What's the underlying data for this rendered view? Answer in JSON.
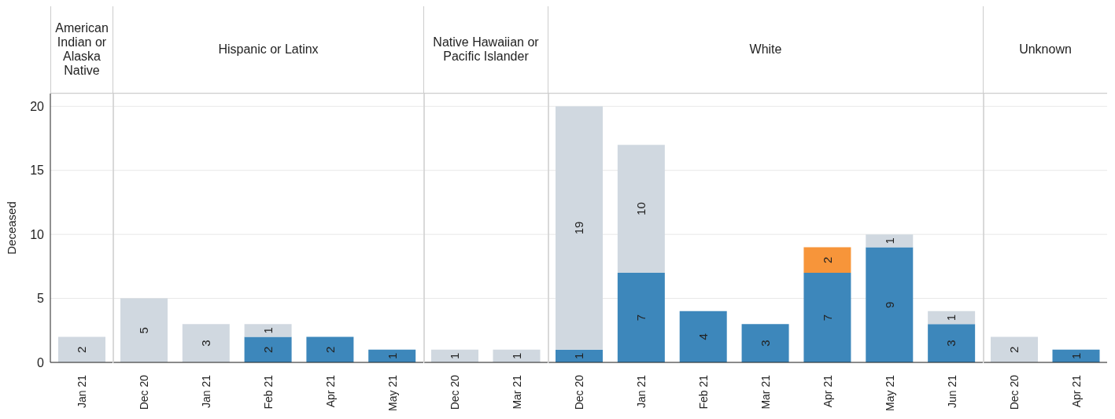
{
  "chart_data": [
    {
      "type": "bar",
      "title": "American Indian or Alaska Native",
      "ylabel": "Deceased",
      "categories": [
        "Jan 21"
      ],
      "stacked": true,
      "data_labels": true,
      "grid": "y",
      "ylim": [
        0,
        21
      ],
      "yticks": [
        0,
        5,
        10,
        15,
        20
      ],
      "series": [
        {
          "color": "#3d87bb",
          "values": [
            null
          ]
        },
        {
          "color": "#f7953a",
          "values": [
            null
          ]
        },
        {
          "color": "#d0d8e0",
          "values": [
            2
          ]
        }
      ]
    },
    {
      "type": "bar",
      "title": "Hispanic or Latinx",
      "categories": [
        "Dec 20",
        "Jan 21",
        "Feb 21",
        "Apr 21",
        "May 21"
      ],
      "stacked": true,
      "data_labels": true,
      "grid": "y",
      "ylim": [
        0,
        21
      ],
      "yticks": [
        0,
        5,
        10,
        15,
        20
      ],
      "tick_labels": "x",
      "series": [
        {
          "color": "#3d87bb",
          "values": [
            null,
            null,
            2,
            2,
            1
          ]
        },
        {
          "color": "#f7953a",
          "values": [
            null,
            null,
            null,
            null,
            null
          ]
        },
        {
          "color": "#d0d8e0",
          "values": [
            5,
            3,
            1,
            null,
            null
          ]
        }
      ]
    },
    {
      "type": "bar",
      "title": "Native Hawaiian or Pacific Islander",
      "categories": [
        "Dec 20",
        "Mar 21"
      ],
      "stacked": true,
      "data_labels": true,
      "grid": "y",
      "ylim": [
        0,
        21
      ],
      "yticks": [
        0,
        5,
        10,
        15,
        20
      ],
      "tick_labels": "x",
      "series": [
        {
          "color": "#3d87bb",
          "values": [
            null,
            null
          ]
        },
        {
          "color": "#f7953a",
          "values": [
            null,
            null
          ]
        },
        {
          "color": "#d0d8e0",
          "values": [
            1,
            1
          ]
        }
      ]
    },
    {
      "type": "bar",
      "title": "White",
      "categories": [
        "Dec 20",
        "Jan 21",
        "Feb 21",
        "Mar 21",
        "Apr 21",
        "May 21",
        "Jun 21"
      ],
      "stacked": true,
      "data_labels": true,
      "grid": "y",
      "ylim": [
        0,
        21
      ],
      "yticks": [
        0,
        5,
        10,
        15,
        20
      ],
      "tick_labels": "x",
      "series": [
        {
          "color": "#3d87bb",
          "values": [
            1,
            7,
            4,
            3,
            7,
            9,
            3
          ]
        },
        {
          "color": "#f7953a",
          "values": [
            null,
            null,
            null,
            null,
            2,
            null,
            null
          ]
        },
        {
          "color": "#d0d8e0",
          "values": [
            19,
            10,
            null,
            null,
            null,
            1,
            1
          ]
        }
      ]
    },
    {
      "type": "bar",
      "title": "Unknown",
      "categories": [
        "Dec 20",
        "Apr 21"
      ],
      "stacked": true,
      "data_labels": true,
      "grid": "y",
      "ylim": [
        0,
        21
      ],
      "yticks": [
        0,
        5,
        10,
        15,
        20
      ],
      "tick_labels": "x",
      "series": [
        {
          "color": "#3d87bb",
          "values": [
            null,
            1
          ]
        },
        {
          "color": "#f7953a",
          "values": [
            null,
            null
          ]
        },
        {
          "color": "#d0d8e0",
          "values": [
            2,
            null
          ]
        }
      ]
    }
  ]
}
